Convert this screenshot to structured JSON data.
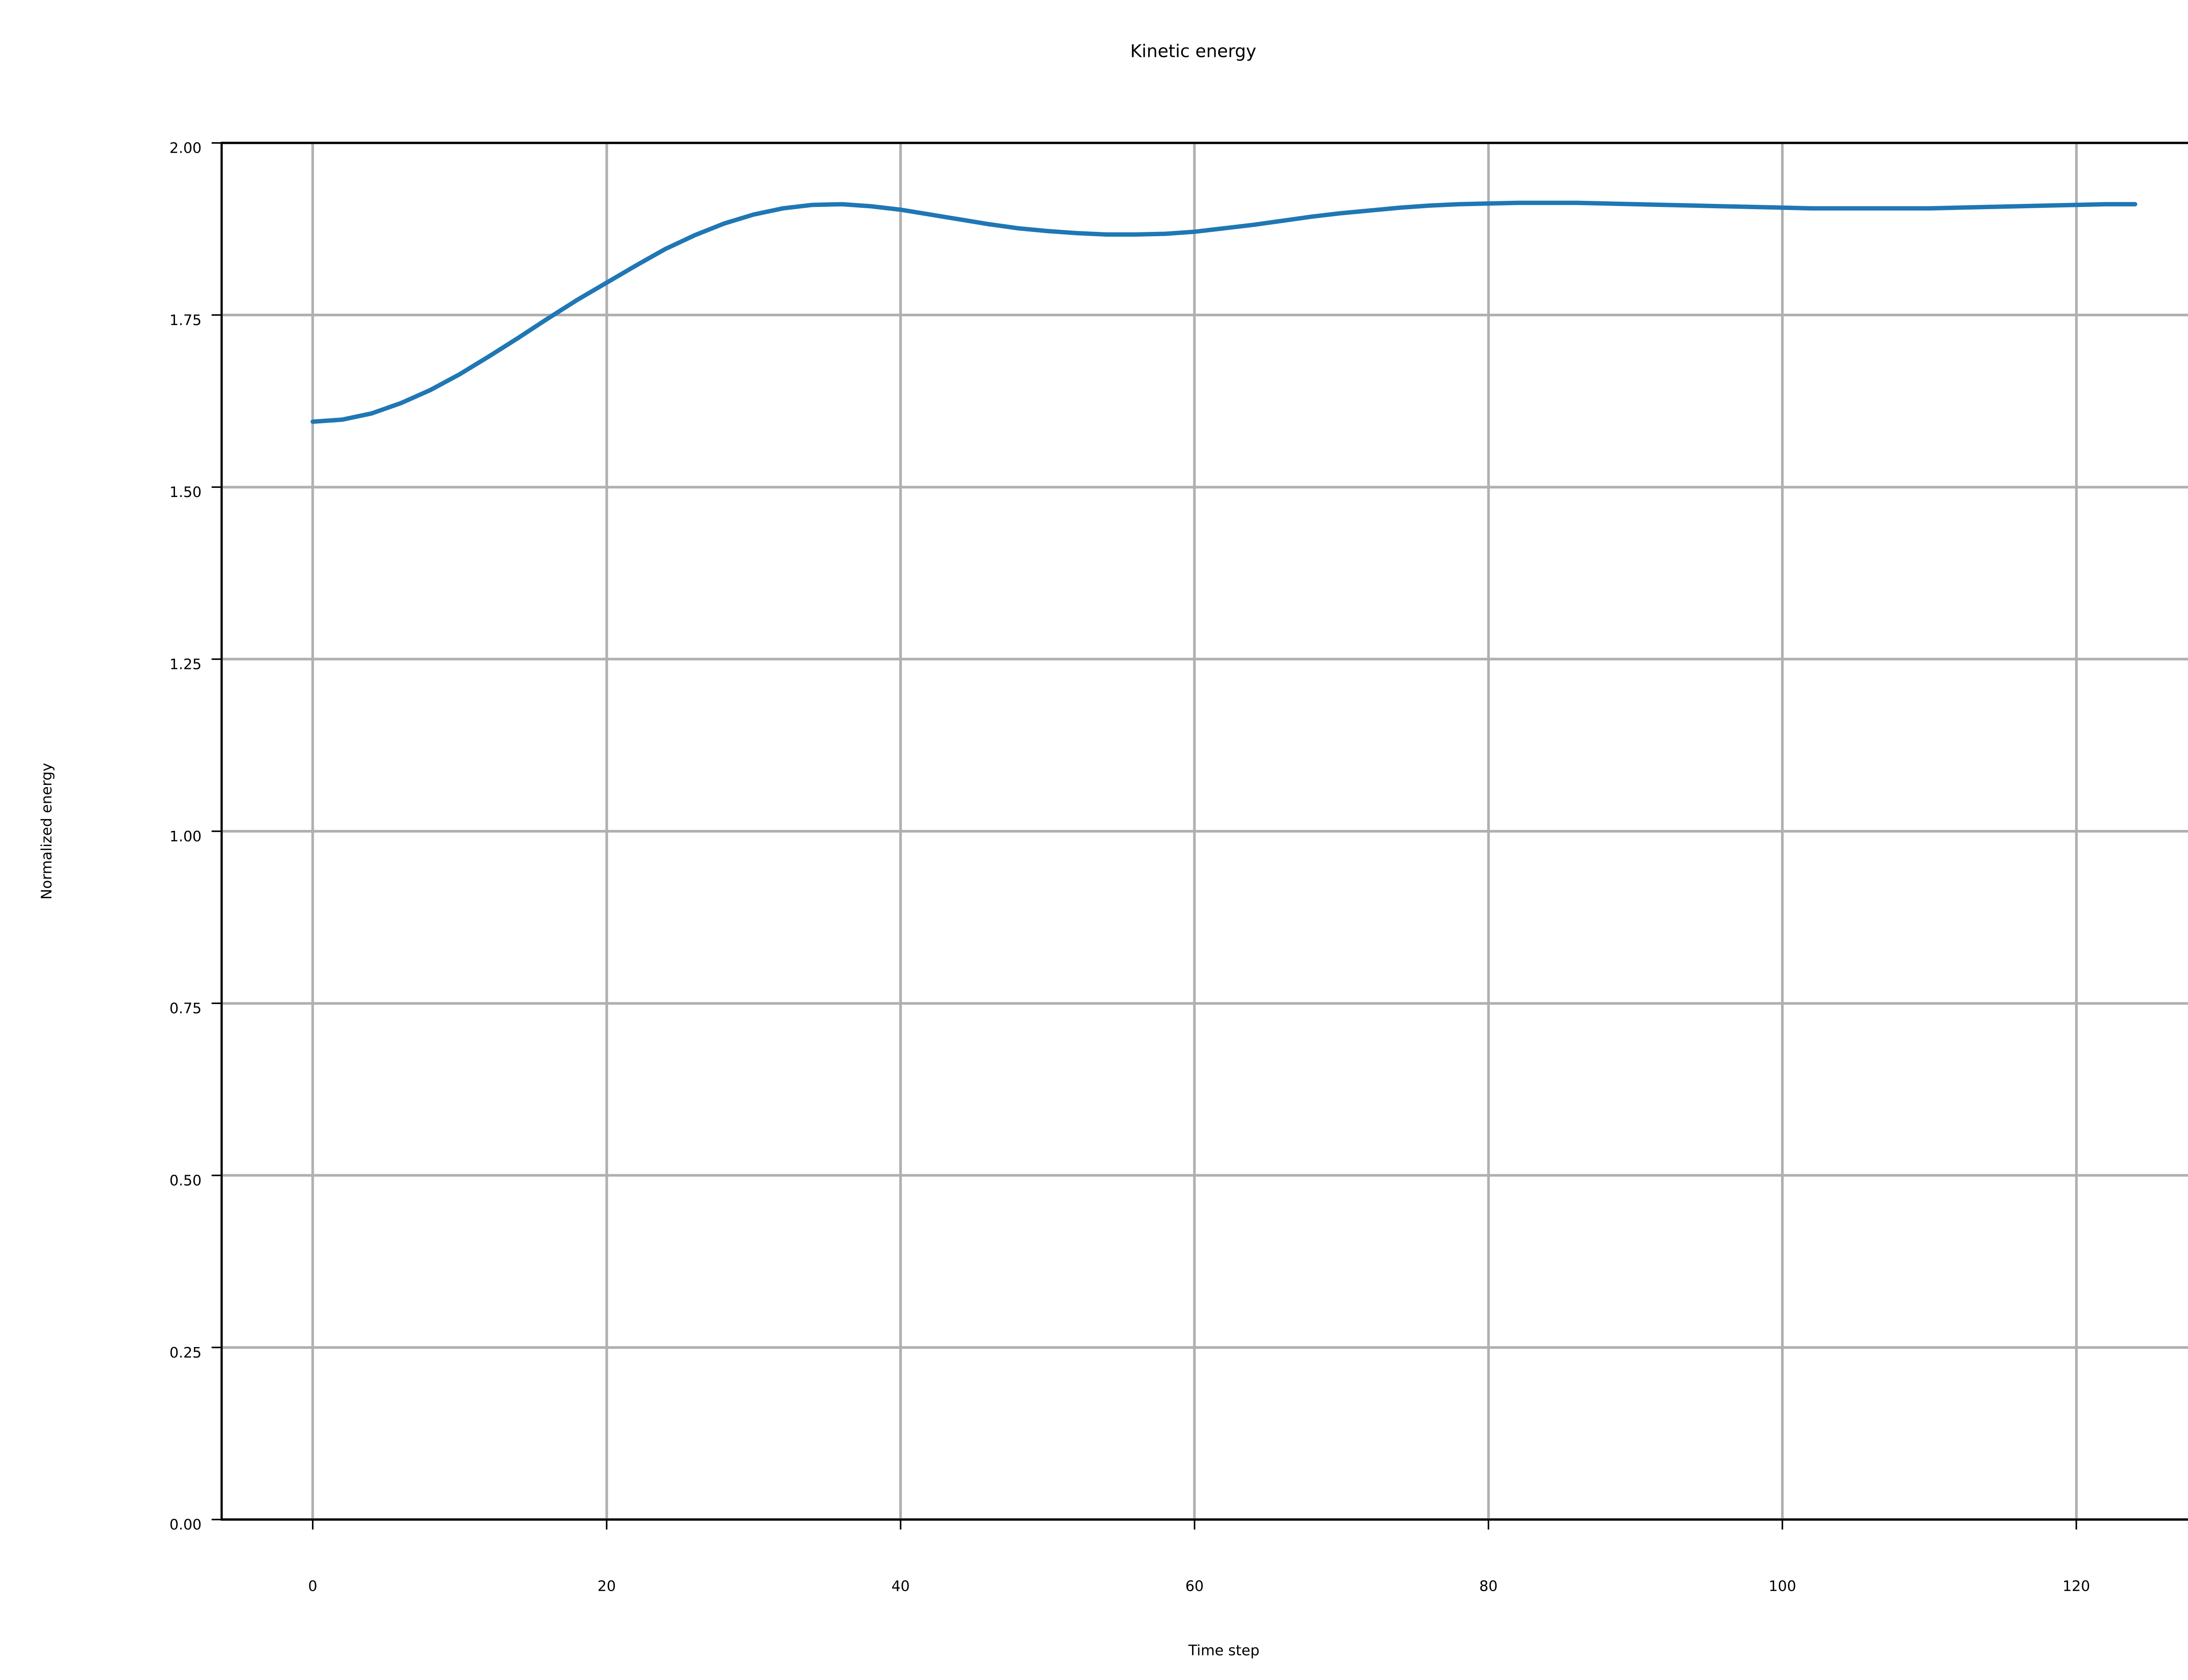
{
  "chart_data": {
    "type": "line",
    "title": "Kinetic energy",
    "xlabel": "Time step",
    "ylabel": "Normalized energy",
    "xlim": [
      -6.2,
      130.2
    ],
    "ylim": [
      0,
      2.0
    ],
    "x_ticks": [
      0,
      20,
      40,
      60,
      80,
      100,
      120
    ],
    "x_tick_labels": [
      "0",
      "20",
      "40",
      "60",
      "80",
      "100",
      "120"
    ],
    "y_ticks": [
      0,
      0.25,
      0.5,
      0.75,
      1.0,
      1.25,
      1.5,
      1.75,
      2.0
    ],
    "y_tick_labels": [
      "0.00",
      "0.25",
      "0.50",
      "0.75",
      "1.00",
      "1.25",
      "1.50",
      "1.75",
      "2.00"
    ],
    "grid": true,
    "series": [
      {
        "color": "#1f77b4",
        "x": [
          0,
          2,
          4,
          6,
          8,
          10,
          12,
          14,
          16,
          18,
          20,
          22,
          24,
          26,
          28,
          30,
          32,
          34,
          36,
          38,
          40,
          42,
          44,
          46,
          48,
          50,
          52,
          54,
          56,
          58,
          60,
          62,
          64,
          66,
          68,
          70,
          72,
          74,
          76,
          78,
          80,
          82,
          84,
          86,
          88,
          90,
          92,
          94,
          96,
          98,
          100,
          102,
          104,
          106,
          108,
          110,
          112,
          114,
          116,
          118,
          120,
          122,
          124
        ],
        "values": [
          1.595,
          1.598,
          1.607,
          1.622,
          1.641,
          1.664,
          1.69,
          1.717,
          1.745,
          1.772,
          1.797,
          1.822,
          1.846,
          1.866,
          1.883,
          1.896,
          1.905,
          1.91,
          1.911,
          1.908,
          1.903,
          1.896,
          1.889,
          1.882,
          1.876,
          1.872,
          1.869,
          1.867,
          1.867,
          1.868,
          1.871,
          1.876,
          1.881,
          1.887,
          1.893,
          1.898,
          1.902,
          1.906,
          1.909,
          1.911,
          1.912,
          1.913,
          1.913,
          1.913,
          1.912,
          1.911,
          1.91,
          1.909,
          1.908,
          1.907,
          1.906,
          1.905,
          1.905,
          1.905,
          1.905,
          1.905,
          1.906,
          1.907,
          1.908,
          1.909,
          1.91,
          1.911,
          1.911
        ]
      }
    ]
  }
}
